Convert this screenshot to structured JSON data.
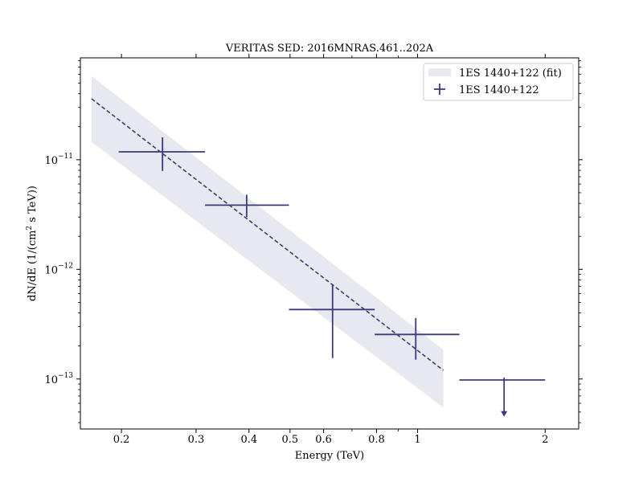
{
  "chart_data": {
    "type": "scatter",
    "title": "VERITAS SED: 2016MNRAS.461..202A",
    "xlabel": "Energy (TeV)",
    "ylabel_prefix": "dN/dE (1/(cm",
    "ylabel_sup": "2",
    "ylabel_suffix": " s TeV))",
    "xscale": "log",
    "yscale": "log",
    "xlim": [
      0.16,
      2.4
    ],
    "ylim": [
      3.5e-14,
      8.5e-11
    ],
    "xticks": [
      {
        "value": 0.2,
        "label": "0.2"
      },
      {
        "value": 0.3,
        "label": "0.3"
      },
      {
        "value": 0.4,
        "label": "0.4"
      },
      {
        "value": 0.5,
        "label": "0.5"
      },
      {
        "value": 0.6,
        "label": "0.6"
      },
      {
        "value": 0.8,
        "label": "0.8"
      },
      {
        "value": 1,
        "label": "1"
      },
      {
        "value": 2,
        "label": "2"
      }
    ],
    "yticks": [
      {
        "value": 1e-13,
        "base": "10",
        "exp": "−13"
      },
      {
        "value": 1e-12,
        "base": "10",
        "exp": "−12"
      },
      {
        "value": 1e-11,
        "base": "10",
        "exp": "−11"
      }
    ],
    "legend_position": "top-right",
    "color": "#3b3b7a",
    "band_color": "#e8e8f0",
    "series": [
      {
        "name": "1ES 1440+122 (fit)",
        "kind": "fit",
        "x": [
          0.17,
          1.15
        ],
        "y": [
          3.6e-11,
          1.2e-13
        ],
        "band_upper": [
          5.8e-11,
          1.85e-13
        ],
        "band_lower": [
          1.45e-11,
          5.5e-14
        ]
      },
      {
        "name": "1ES 1440+122",
        "kind": "points",
        "points": [
          {
            "x": 0.25,
            "y": 1.18e-11,
            "xlow": 0.197,
            "xhigh": 0.315,
            "ylow": 7.9e-12,
            "yhigh": 1.6e-11,
            "upper_limit": false
          },
          {
            "x": 0.395,
            "y": 3.85e-12,
            "xlow": 0.315,
            "xhigh": 0.497,
            "ylow": 3e-12,
            "yhigh": 4.8e-12,
            "upper_limit": false
          },
          {
            "x": 0.63,
            "y": 4.3e-13,
            "xlow": 0.497,
            "xhigh": 0.792,
            "ylow": 1.55e-13,
            "yhigh": 7.2e-13,
            "upper_limit": false
          },
          {
            "x": 0.99,
            "y": 2.55e-13,
            "xlow": 0.792,
            "xhigh": 1.255,
            "ylow": 1.5e-13,
            "yhigh": 3.6e-13,
            "upper_limit": false
          },
          {
            "x": 1.6,
            "y": 9.8e-14,
            "xlow": 1.255,
            "xhigh": 2.0,
            "ylow": 4.6e-14,
            "yhigh": 1.03e-13,
            "upper_limit": true
          }
        ]
      }
    ]
  }
}
